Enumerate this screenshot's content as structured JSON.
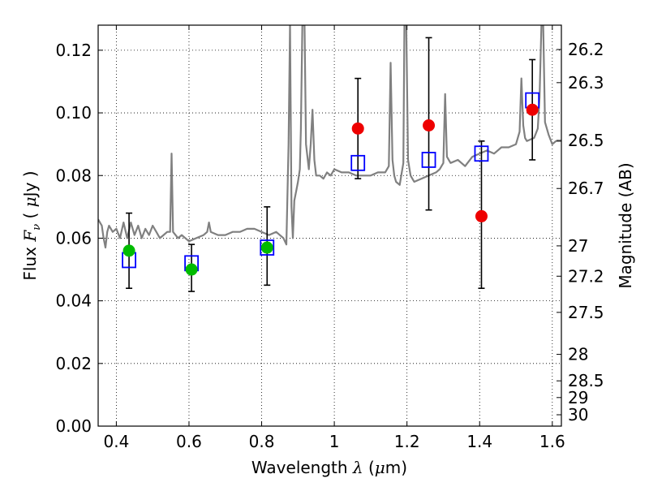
{
  "chart_data": {
    "type": "scatter",
    "xlabel": {
      "prefix": "Wavelength  ",
      "symbol": "λ",
      "open": " (",
      "unit_mu": "μ",
      "unit_rest": "m)"
    },
    "ylabel": {
      "prefix": "Flux  ",
      "symbol": "F",
      "subscript": "ν",
      "open": "  ( ",
      "unit_mu": "μ",
      "unit_rest": "Jy )"
    },
    "y2label": "Magnitude (AB)",
    "xlim": [
      0.35,
      1.625
    ],
    "ylim": [
      0.0,
      0.128
    ],
    "x_ticks": [
      0.4,
      0.6,
      0.8,
      1.0,
      1.2,
      1.4,
      1.6
    ],
    "x_tick_labels": [
      "0.4",
      "0.6",
      "0.8",
      "1",
      "1.2",
      "1.4",
      "1.6"
    ],
    "y_ticks": [
      0.0,
      0.02,
      0.04,
      0.06,
      0.08,
      0.1,
      0.12
    ],
    "y_tick_labels": [
      "0.00",
      "0.02",
      "0.04",
      "0.06",
      "0.08",
      "0.10",
      "0.12"
    ],
    "mag_ticks": [
      26.2,
      26.3,
      26.5,
      26.7,
      27,
      27.2,
      27.5,
      28,
      28.5,
      29,
      30
    ],
    "mag_tick_labels": [
      "26.2",
      "26.3",
      "26.5",
      "26.7",
      "27",
      "27.2",
      "27.5",
      "28",
      "28.5",
      "29",
      "30"
    ],
    "grid": true,
    "colors": {
      "spectrum": "#808080",
      "model_box": "#0000ff",
      "green_marker": "#00bb00",
      "red_marker": "#ee0000",
      "errorbar": "#000000"
    },
    "series": [
      {
        "kind": "line",
        "points": [
          [
            0.35,
            0.066
          ],
          [
            0.36,
            0.064
          ],
          [
            0.365,
            0.06
          ],
          [
            0.37,
            0.057
          ],
          [
            0.375,
            0.062
          ],
          [
            0.38,
            0.064
          ],
          [
            0.39,
            0.062
          ],
          [
            0.4,
            0.063
          ],
          [
            0.41,
            0.06
          ],
          [
            0.42,
            0.065
          ],
          [
            0.43,
            0.06
          ],
          [
            0.44,
            0.065
          ],
          [
            0.45,
            0.061
          ],
          [
            0.46,
            0.064
          ],
          [
            0.47,
            0.06
          ],
          [
            0.48,
            0.063
          ],
          [
            0.49,
            0.061
          ],
          [
            0.5,
            0.064
          ],
          [
            0.51,
            0.062
          ],
          [
            0.52,
            0.06
          ],
          [
            0.53,
            0.061
          ],
          [
            0.54,
            0.062
          ],
          [
            0.548,
            0.062
          ],
          [
            0.552,
            0.087
          ],
          [
            0.556,
            0.062
          ],
          [
            0.57,
            0.06
          ],
          [
            0.58,
            0.061
          ],
          [
            0.6,
            0.059
          ],
          [
            0.62,
            0.06
          ],
          [
            0.64,
            0.061
          ],
          [
            0.65,
            0.062
          ],
          [
            0.655,
            0.065
          ],
          [
            0.66,
            0.062
          ],
          [
            0.68,
            0.061
          ],
          [
            0.7,
            0.061
          ],
          [
            0.72,
            0.062
          ],
          [
            0.74,
            0.062
          ],
          [
            0.76,
            0.063
          ],
          [
            0.78,
            0.063
          ],
          [
            0.8,
            0.062
          ],
          [
            0.82,
            0.061
          ],
          [
            0.84,
            0.062
          ],
          [
            0.85,
            0.061
          ],
          [
            0.86,
            0.06
          ],
          [
            0.868,
            0.058
          ],
          [
            0.874,
            0.09
          ],
          [
            0.878,
            0.128
          ],
          [
            0.882,
            0.07
          ],
          [
            0.886,
            0.06
          ],
          [
            0.89,
            0.072
          ],
          [
            0.895,
            0.075
          ],
          [
            0.9,
            0.078
          ],
          [
            0.905,
            0.082
          ],
          [
            0.908,
            0.095
          ],
          [
            0.912,
            0.128
          ],
          [
            0.918,
            0.128
          ],
          [
            0.922,
            0.09
          ],
          [
            0.93,
            0.082
          ],
          [
            0.935,
            0.09
          ],
          [
            0.94,
            0.101
          ],
          [
            0.945,
            0.085
          ],
          [
            0.95,
            0.08
          ],
          [
            0.96,
            0.08
          ],
          [
            0.97,
            0.079
          ],
          [
            0.98,
            0.081
          ],
          [
            0.99,
            0.08
          ],
          [
            1.0,
            0.082
          ],
          [
            1.02,
            0.081
          ],
          [
            1.04,
            0.081
          ],
          [
            1.06,
            0.08
          ],
          [
            1.08,
            0.08
          ],
          [
            1.1,
            0.08
          ],
          [
            1.12,
            0.081
          ],
          [
            1.14,
            0.081
          ],
          [
            1.15,
            0.083
          ],
          [
            1.155,
            0.116
          ],
          [
            1.16,
            0.085
          ],
          [
            1.165,
            0.08
          ],
          [
            1.17,
            0.078
          ],
          [
            1.18,
            0.077
          ],
          [
            1.19,
            0.084
          ],
          [
            1.193,
            0.128
          ],
          [
            1.198,
            0.128
          ],
          [
            1.203,
            0.085
          ],
          [
            1.21,
            0.08
          ],
          [
            1.22,
            0.078
          ],
          [
            1.24,
            0.079
          ],
          [
            1.26,
            0.08
          ],
          [
            1.28,
            0.081
          ],
          [
            1.29,
            0.082
          ],
          [
            1.3,
            0.084
          ],
          [
            1.305,
            0.106
          ],
          [
            1.31,
            0.086
          ],
          [
            1.32,
            0.084
          ],
          [
            1.34,
            0.085
          ],
          [
            1.36,
            0.083
          ],
          [
            1.38,
            0.086
          ],
          [
            1.4,
            0.087
          ],
          [
            1.42,
            0.088
          ],
          [
            1.44,
            0.087
          ],
          [
            1.46,
            0.089
          ],
          [
            1.48,
            0.089
          ],
          [
            1.5,
            0.09
          ],
          [
            1.51,
            0.094
          ],
          [
            1.515,
            0.111
          ],
          [
            1.52,
            0.096
          ],
          [
            1.525,
            0.092
          ],
          [
            1.53,
            0.091
          ],
          [
            1.55,
            0.092
          ],
          [
            1.56,
            0.095
          ],
          [
            1.565,
            0.105
          ],
          [
            1.57,
            0.128
          ],
          [
            1.575,
            0.128
          ],
          [
            1.58,
            0.097
          ],
          [
            1.59,
            0.093
          ],
          [
            1.6,
            0.09
          ],
          [
            1.61,
            0.091
          ],
          [
            1.625,
            0.091
          ]
        ]
      },
      {
        "kind": "model_boxes",
        "x": [
          0.435,
          0.607,
          0.815,
          1.065,
          1.26,
          1.405,
          1.545
        ],
        "y": [
          0.053,
          0.052,
          0.057,
          0.084,
          0.085,
          0.087,
          0.104
        ]
      },
      {
        "kind": "markers_green",
        "x": [
          0.435,
          0.607,
          0.815
        ],
        "y": [
          0.056,
          0.05,
          0.057
        ]
      },
      {
        "kind": "markers_red",
        "x": [
          1.065,
          1.26,
          1.405,
          1.545
        ],
        "y": [
          0.095,
          0.096,
          0.067,
          0.101
        ]
      },
      {
        "kind": "errorbars",
        "x": [
          0.435,
          0.607,
          0.815,
          1.065,
          1.26,
          1.405,
          1.545
        ],
        "ylow": [
          0.044,
          0.043,
          0.045,
          0.079,
          0.069,
          0.044,
          0.085
        ],
        "yhigh": [
          0.068,
          0.058,
          0.07,
          0.111,
          0.124,
          0.091,
          0.117
        ]
      }
    ]
  }
}
